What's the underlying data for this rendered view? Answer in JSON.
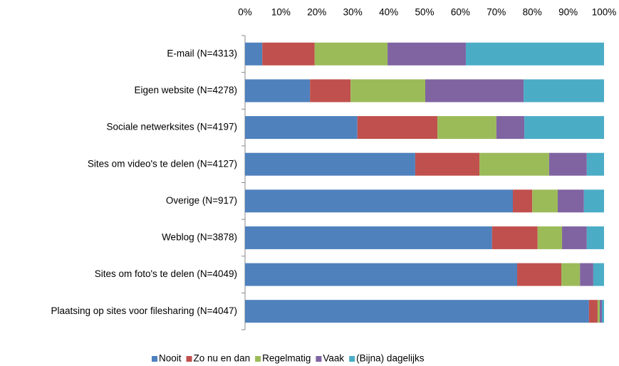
{
  "chart_data": {
    "type": "stacked-bar-horizontal",
    "categories": [
      "E-mail (N=4313)",
      "Eigen website (N=4278)",
      "Sociale netwerksites (N=4197)",
      "Sites om video's te delen (N=4127)",
      "Overige (N=917)",
      "Weblog (N=3878)",
      "Sites om foto's te delen (N=4049)",
      "Plaatsing op sites voor filesharing (N=4047)"
    ],
    "series": [
      {
        "name": "Nooit",
        "color": "#4f81bd",
        "values": [
          4.8,
          18.1,
          31.3,
          47.4,
          74.6,
          68.8,
          75.8,
          95.8
        ]
      },
      {
        "name": "Zo nu en dan",
        "color": "#c0504d",
        "values": [
          14.6,
          11.3,
          22.3,
          17.9,
          5.4,
          12.7,
          12.3,
          2.4
        ]
      },
      {
        "name": "Regelmatig",
        "color": "#9bbb59",
        "values": [
          20.3,
          20.8,
          16.4,
          19.4,
          7.1,
          6.8,
          5.2,
          0.6
        ]
      },
      {
        "name": "Vaak",
        "color": "#8064a2",
        "values": [
          21.8,
          27.4,
          7.8,
          10.5,
          7.3,
          6.9,
          3.7,
          0.6
        ]
      },
      {
        "name": "(Bijna) dagelijks",
        "color": "#4bacc6",
        "values": [
          38.5,
          22.4,
          22.2,
          4.8,
          5.6,
          4.8,
          3.0,
          0.6
        ]
      }
    ],
    "xlim": [
      0,
      100
    ],
    "xticks": [
      {
        "value": 0,
        "label": "0%"
      },
      {
        "value": 10,
        "label": "10%"
      },
      {
        "value": 20,
        "label": "20%"
      },
      {
        "value": 30,
        "label": "30%"
      },
      {
        "value": 40,
        "label": "40%"
      },
      {
        "value": 50,
        "label": "50%"
      },
      {
        "value": 60,
        "label": "60%"
      },
      {
        "value": 70,
        "label": "70%"
      },
      {
        "value": 80,
        "label": "80%"
      },
      {
        "value": 90,
        "label": "90%"
      },
      {
        "value": 100,
        "label": "100%"
      }
    ],
    "legend": "bottom"
  }
}
